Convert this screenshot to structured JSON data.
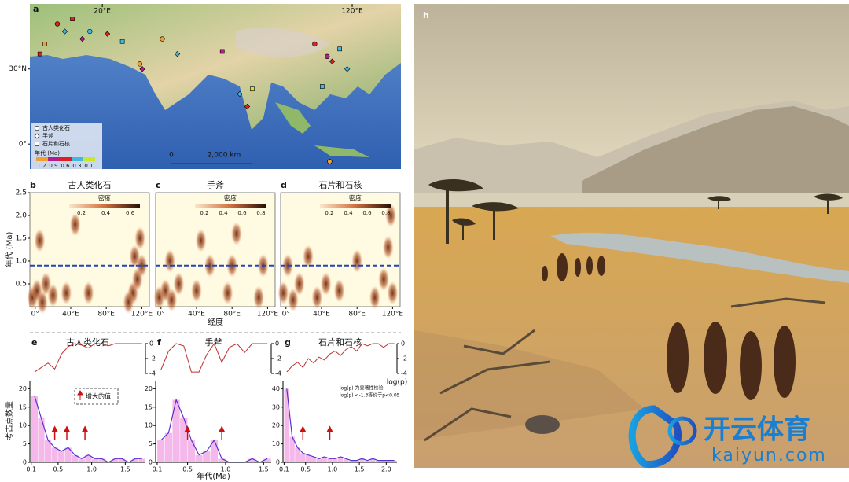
{
  "chart_data": [
    {
      "type": "map",
      "letter": "a",
      "xlim": [
        -9,
        139.5
      ],
      "ylim": [
        -10,
        56
      ],
      "xticks": [
        {
          "value": 20,
          "label": "20°E"
        },
        {
          "value": 120,
          "label": "120°E"
        }
      ],
      "yticks": [
        {
          "value": 30,
          "label": "30°N"
        },
        {
          "value": 0,
          "label": "0°"
        }
      ],
      "legend": {
        "symbols": [
          "古人类化石",
          "手斧",
          "石片和石核"
        ],
        "title": "年代 (Ma)",
        "age_ticks": [
          1.2,
          0.9,
          0.6,
          0.3,
          0.1
        ],
        "age_colors": [
          "#f0a030",
          "#b0208a",
          "#e02020",
          "#40b8e0",
          "#c8e830"
        ]
      },
      "scalebar": {
        "labels": [
          "0",
          "2,000 km"
        ]
      },
      "sites": {
        "lon": [
          2,
          5,
          8,
          12,
          15,
          -3,
          22,
          28,
          35,
          44,
          50,
          68,
          75,
          78,
          80,
          105,
          110,
          112,
          115,
          118,
          108,
          111,
          36,
          -5
        ],
        "lat": [
          48,
          45,
          50,
          42,
          45,
          40,
          44,
          41,
          32,
          42,
          36,
          37,
          20,
          15,
          22,
          40,
          35,
          33,
          38,
          30,
          23,
          -7,
          30,
          36
        ],
        "age": [
          0.5,
          0.3,
          0.7,
          0.9,
          0.2,
          1.2,
          0.6,
          0.4,
          1.2,
          1.2,
          0.3,
          0.8,
          0.3,
          0.5,
          0.1,
          0.6,
          1.0,
          0.5,
          0.3,
          0.2,
          0.4,
          1.2,
          0.9,
          0.6
        ],
        "kind": [
          0,
          1,
          2,
          1,
          0,
          2,
          1,
          2,
          0,
          0,
          1,
          2,
          1,
          1,
          2,
          0,
          0,
          1,
          2,
          1,
          2,
          0,
          1,
          2
        ]
      }
    },
    {
      "type": "density",
      "letter": "b",
      "title": "古人类化石",
      "ylabel": "年代 (Ma)",
      "xlim": [
        -6,
        128.5
      ],
      "ylim": [
        0,
        2.5
      ],
      "xticks": [
        {
          "value": 0,
          "label": "0°"
        },
        {
          "value": 40,
          "label": "40°E"
        },
        {
          "value": 80,
          "label": "80°E"
        },
        {
          "value": 120,
          "label": "120°E"
        }
      ],
      "yticks": [
        0.5,
        {
          "value": 1,
          "label": "1.0"
        },
        1.5,
        {
          "value": 2,
          "label": "2.0"
        },
        2.5
      ],
      "threshold": 0.9,
      "colorbar": {
        "label": "密度",
        "ticks": [
          0.2,
          0.4,
          0.6
        ],
        "clim": [
          0.1,
          0.68
        ]
      },
      "points": {
        "x": [
          -3,
          2,
          8,
          12,
          20,
          5,
          35,
          45,
          110,
          115,
          118,
          112,
          120,
          105,
          60
        ],
        "y": [
          0.2,
          0.35,
          0.1,
          0.5,
          0.25,
          1.45,
          0.3,
          1.8,
          0.3,
          0.6,
          1.5,
          1.1,
          0.9,
          0.1,
          0.3
        ]
      }
    },
    {
      "type": "density",
      "letter": "c",
      "title": "手斧",
      "xlabel": "经度",
      "xlim": [
        -6,
        128.5
      ],
      "ylim": [
        0,
        2.5
      ],
      "xticks": [
        {
          "value": 0,
          "label": "0°"
        },
        {
          "value": 40,
          "label": "40°E"
        },
        {
          "value": 80,
          "label": "80°E"
        },
        {
          "value": 120,
          "label": "120°E"
        }
      ],
      "threshold": 0.9,
      "colorbar": {
        "label": "密度",
        "ticks": [
          0.2,
          0.4,
          0.6,
          0.8
        ],
        "clim": [
          0.1,
          0.85
        ]
      },
      "points": {
        "x": [
          -2,
          5,
          12,
          20,
          10,
          40,
          45,
          55,
          75,
          85,
          80,
          110,
          115
        ],
        "y": [
          0.2,
          0.35,
          0.15,
          0.5,
          1.0,
          0.35,
          1.45,
          0.9,
          0.3,
          1.6,
          0.9,
          0.2,
          0.9
        ]
      }
    },
    {
      "type": "density",
      "letter": "d",
      "title": "石片和石核",
      "xlim": [
        -6,
        128.5
      ],
      "ylim": [
        0,
        2.5
      ],
      "xticks": [
        {
          "value": 0,
          "label": "0°"
        },
        {
          "value": 40,
          "label": "40°E"
        },
        {
          "value": 80,
          "label": "80°E"
        },
        {
          "value": 120,
          "label": "120°E"
        }
      ],
      "threshold": 0.9,
      "colorbar": {
        "label": "密度",
        "ticks": [
          0.2,
          0.4,
          0.6,
          0.8
        ],
        "clim": [
          0.1,
          0.85
        ]
      },
      "points": {
        "x": [
          -3,
          2,
          8,
          15,
          25,
          35,
          45,
          60,
          80,
          100,
          110,
          115,
          118,
          120
        ],
        "y": [
          0.3,
          0.9,
          0.15,
          0.5,
          1.1,
          0.2,
          0.5,
          0.35,
          1.0,
          0.2,
          0.6,
          1.3,
          2.0,
          0.3
        ]
      }
    },
    {
      "type": "histogram",
      "letter": "e",
      "title": "古人类化石",
      "ylabel": "考古点数量",
      "legend_text": "增大的值",
      "color": "#f4b8ea",
      "edgecolor": "#5533cc",
      "linecolor": "#c03030",
      "bins": [
        0.1,
        0.2,
        0.3,
        0.4,
        0.5,
        0.6,
        0.7,
        0.8,
        0.9,
        1.0,
        1.1,
        1.2,
        1.3,
        1.4,
        1.5,
        1.6,
        1.7,
        1.8
      ],
      "values": [
        18,
        12,
        6,
        4,
        3,
        4,
        2,
        1,
        2,
        1,
        1,
        0,
        1,
        1,
        0,
        1,
        1
      ],
      "logp": [
        -3.8,
        -3.2,
        -2.6,
        -3.4,
        -1.4,
        -0.4,
        0,
        -0.2,
        -0.6,
        0,
        0,
        -0.3,
        0,
        0,
        0,
        0,
        0
      ],
      "arrows": [
        0.45,
        0.63,
        0.9
      ],
      "xlim": [
        0.08,
        1.8
      ],
      "xticks": [
        0.1,
        0.5,
        {
          "value": 1,
          "label": "1.0"
        },
        1.5
      ],
      "ylim": [
        0,
        22
      ],
      "yticks": [
        0,
        5,
        10,
        15,
        20
      ],
      "y2lim": [
        -4,
        0
      ],
      "y2ticks": [
        0,
        -2,
        -4
      ]
    },
    {
      "type": "histogram",
      "letter": "f",
      "title": "手斧",
      "xlabel": "年代(Ma)",
      "color": "#f4b8ea",
      "edgecolor": "#5533cc",
      "linecolor": "#c03030",
      "bins": [
        0.1,
        0.2,
        0.3,
        0.4,
        0.5,
        0.6,
        0.7,
        0.8,
        0.9,
        1.0,
        1.1,
        1.2,
        1.3,
        1.4,
        1.5,
        1.6
      ],
      "values": [
        6,
        8,
        17,
        12,
        6,
        2,
        3,
        6,
        1,
        0,
        0,
        0,
        1,
        0,
        1
      ],
      "logp": [
        -3.5,
        -1.0,
        0,
        -0.3,
        -3.8,
        -3.8,
        -1.5,
        0,
        -2.5,
        -0.5,
        0,
        -1.2,
        0,
        0,
        0
      ],
      "arrows": [
        0.5,
        0.95
      ],
      "xlim": [
        0.08,
        1.6
      ],
      "xticks": [
        0.1,
        0.5,
        {
          "value": 1,
          "label": "1.0"
        },
        1.5
      ],
      "ylim": [
        0,
        22
      ],
      "yticks": [
        0,
        5,
        10,
        15,
        20
      ],
      "y2lim": [
        -4,
        0
      ],
      "y2ticks": [
        0,
        -2,
        -4
      ]
    },
    {
      "type": "histogram",
      "letter": "g",
      "title": "石片和石核",
      "y2label": "log(p)",
      "notes": [
        "log(p) 为显著性检验",
        "log(p) <-1.3等价于p<0.05"
      ],
      "color": "#f4b8ea",
      "edgecolor": "#5533cc",
      "linecolor": "#c03030",
      "bins": [
        0.1,
        0.2,
        0.3,
        0.4,
        0.5,
        0.6,
        0.7,
        0.8,
        0.9,
        1.0,
        1.1,
        1.2,
        1.3,
        1.4,
        1.5,
        1.6,
        1.7,
        1.8,
        1.9,
        2.0,
        2.1,
        2.2
      ],
      "values": [
        40,
        14,
        8,
        5,
        4,
        3,
        2,
        3,
        2,
        2,
        3,
        2,
        1,
        1,
        2,
        1,
        2,
        1,
        1,
        1,
        1
      ],
      "logp": [
        -3.8,
        -3.0,
        -2.5,
        -3.2,
        -2.0,
        -2.6,
        -1.8,
        -2.2,
        -1.4,
        -1.0,
        -1.6,
        -0.8,
        -0.4,
        -1.0,
        0,
        -0.3,
        0,
        0,
        -0.5,
        0,
        0
      ],
      "arrows": [
        0.45,
        0.95
      ],
      "xlim": [
        0.08,
        2.2
      ],
      "xticks": [
        0.1,
        0.5,
        {
          "value": 1,
          "label": "1.0"
        },
        1.5,
        {
          "value": 2,
          "label": "2.0"
        }
      ],
      "ylim": [
        0,
        44
      ],
      "yticks": [
        0,
        10,
        20,
        30,
        40
      ],
      "y2lim": [
        -4,
        0
      ],
      "y2ticks": [
        0,
        -2,
        -4
      ]
    }
  ],
  "painting": {
    "letter": "h",
    "watermark": {
      "brand": "开云体育",
      "url": "kaiyun.com"
    }
  }
}
